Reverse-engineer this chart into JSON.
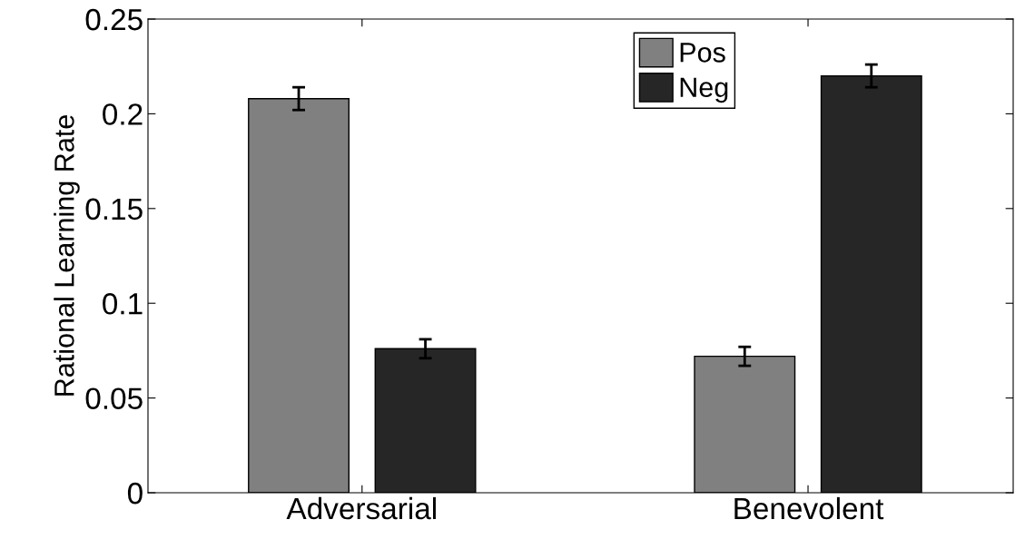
{
  "chart_data": {
    "type": "bar",
    "ylabel": "Rational Learning Rate",
    "categories": [
      "Adversarial",
      "Benevolent"
    ],
    "series": [
      {
        "name": "Pos",
        "color": "#808080",
        "values": [
          0.208,
          0.072
        ],
        "errors": [
          0.006,
          0.005
        ]
      },
      {
        "name": "Neg",
        "color": "#262626",
        "values": [
          0.076,
          0.22
        ],
        "errors": [
          0.005,
          0.006
        ]
      }
    ],
    "ylim": [
      0,
      0.25
    ],
    "yticks": [
      0,
      0.05,
      0.1,
      0.15,
      0.2,
      0.25
    ],
    "grid": false,
    "legend": "top"
  }
}
